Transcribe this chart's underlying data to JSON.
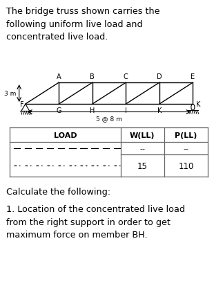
{
  "title_text": "The bridge truss shown carries the\nfollowing uniform live load and\nconcentrated live load.",
  "dim_label": "5 @ 8 m",
  "height_label": "3 m",
  "calc_text": "Calculate the following:",
  "question_text": "1. Location of the concentrated live load\nfrom the right support in order to get\nmaximum force on member BH.",
  "bg_color": "#ffffff",
  "truss_color": "#000000",
  "table_border_color": "#666666"
}
